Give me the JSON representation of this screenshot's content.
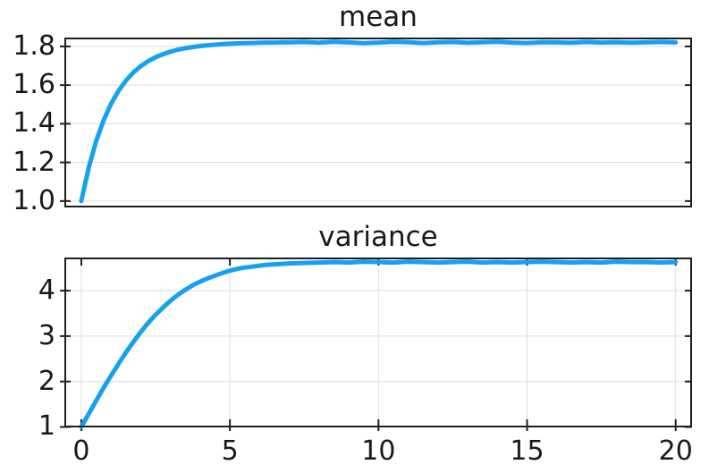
{
  "style": {
    "background": "#ffffff",
    "line_color": "#14a1f1",
    "grid_color": "#dcdcdc",
    "frame_color": "#1f1f1f",
    "text_color": "#191919"
  },
  "chart_data": [
    {
      "type": "line",
      "title": "mean",
      "legend": "none",
      "grid_x": false,
      "grid_y": true,
      "xlim": [
        -0.57,
        20.55
      ],
      "ylim": [
        0.967,
        1.846
      ],
      "yticks": [
        1.0,
        1.2,
        1.4,
        1.6,
        1.8
      ],
      "ytick_labels": [
        "1.0",
        "1.2",
        "1.4",
        "1.6",
        "1.8"
      ],
      "xticks": [],
      "xtick_labels": [],
      "series": [
        {
          "name": "mean",
          "x": [
            0,
            0.25,
            0.5,
            0.75,
            1,
            1.25,
            1.5,
            1.75,
            2,
            2.25,
            2.5,
            2.75,
            3,
            3.25,
            3.5,
            3.75,
            4,
            4.25,
            4.5,
            4.75,
            5,
            5.25,
            5.5,
            5.75,
            6,
            6.25,
            6.5,
            6.75,
            7,
            7.5,
            8,
            8.5,
            9,
            9.5,
            10,
            10.5,
            11,
            11.5,
            12,
            12.5,
            13,
            13.5,
            14,
            14.5,
            15,
            15.5,
            16,
            16.5,
            17,
            17.5,
            18,
            18.5,
            19,
            19.5,
            20
          ],
          "y": [
            1.0,
            1.174,
            1.311,
            1.418,
            1.503,
            1.57,
            1.623,
            1.665,
            1.698,
            1.724,
            1.744,
            1.76,
            1.773,
            1.783,
            1.791,
            1.797,
            1.802,
            1.806,
            1.809,
            1.812,
            1.814,
            1.816,
            1.817,
            1.818,
            1.819,
            1.82,
            1.82,
            1.821,
            1.821,
            1.823,
            1.819,
            1.824,
            1.821,
            1.817,
            1.82,
            1.824,
            1.822,
            1.818,
            1.821,
            1.823,
            1.819,
            1.822,
            1.824,
            1.82,
            1.818,
            1.822,
            1.821,
            1.819,
            1.823,
            1.82,
            1.822,
            1.819,
            1.821,
            1.823,
            1.821
          ]
        }
      ]
    },
    {
      "type": "line",
      "title": "variance",
      "legend": "none",
      "grid_x": true,
      "grid_y": true,
      "xlim": [
        -0.57,
        20.55
      ],
      "ylim": [
        0.99,
        4.73
      ],
      "yticks": [
        1,
        2,
        3,
        4
      ],
      "ytick_labels": [
        "1",
        "2",
        "3",
        "4"
      ],
      "xticks": [
        0,
        5,
        10,
        15,
        20
      ],
      "xtick_labels": [
        "0",
        "5",
        "10",
        "15",
        "20"
      ],
      "series": [
        {
          "name": "variance",
          "x": [
            0,
            0.25,
            0.5,
            0.75,
            1,
            1.25,
            1.5,
            1.75,
            2,
            2.25,
            2.5,
            2.75,
            3,
            3.25,
            3.5,
            3.75,
            4,
            4.25,
            4.5,
            4.75,
            5,
            5.25,
            5.5,
            5.75,
            6,
            6.25,
            6.5,
            6.75,
            7,
            7.5,
            8,
            8.5,
            9,
            9.5,
            10,
            10.5,
            11,
            11.5,
            12,
            12.5,
            13,
            13.5,
            14,
            14.5,
            15,
            15.5,
            16,
            16.5,
            17,
            17.5,
            18,
            18.5,
            19,
            19.5,
            20
          ],
          "y": [
            1.0,
            1.29,
            1.58,
            1.86,
            2.13,
            2.39,
            2.64,
            2.87,
            3.09,
            3.29,
            3.47,
            3.63,
            3.78,
            3.91,
            4.02,
            4.12,
            4.2,
            4.27,
            4.33,
            4.39,
            4.44,
            4.48,
            4.51,
            4.53,
            4.55,
            4.57,
            4.58,
            4.59,
            4.6,
            4.61,
            4.62,
            4.63,
            4.62,
            4.64,
            4.63,
            4.62,
            4.64,
            4.63,
            4.62,
            4.63,
            4.64,
            4.62,
            4.63,
            4.62,
            4.63,
            4.64,
            4.63,
            4.62,
            4.63,
            4.62,
            4.64,
            4.63,
            4.63,
            4.62,
            4.63
          ]
        }
      ]
    }
  ]
}
